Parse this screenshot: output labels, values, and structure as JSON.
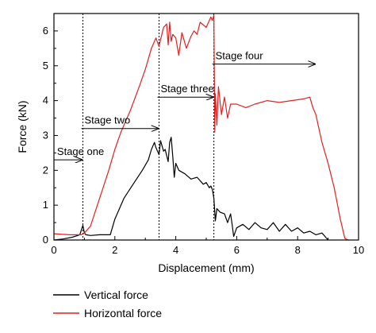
{
  "chart_data": {
    "type": "line",
    "xlabel": "Displacement (mm)",
    "ylabel": "Force (kN)",
    "xlim": [
      0,
      10
    ],
    "ylim": [
      0,
      6.5
    ],
    "xticks": [
      "0",
      "2",
      "4",
      "6",
      "8",
      "10"
    ],
    "yticks": [
      "0",
      "1",
      "2",
      "3",
      "4",
      "5",
      "6"
    ],
    "grid": false,
    "legend_position": "bottom-left",
    "stage_boundaries": [
      0.95,
      3.45,
      5.25
    ],
    "annotations": [
      {
        "text": "Stage one",
        "x": 0.05,
        "y": 2.3,
        "arrow_to": 0.95
      },
      {
        "text": "Stage two",
        "x": 0.95,
        "y": 3.2,
        "arrow_to": 3.45
      },
      {
        "text": "Stage three",
        "x": 3.45,
        "y": 4.1,
        "arrow_to": 5.25
      },
      {
        "text": "Stage four",
        "x": 5.25,
        "y": 5.05,
        "arrow_to": 8.6
      }
    ],
    "series": [
      {
        "name": "Vertical force",
        "color": "#000000",
        "x": [
          0,
          0.3,
          0.6,
          0.85,
          0.95,
          1.0,
          1.05,
          1.2,
          1.5,
          1.85,
          2.0,
          2.3,
          2.6,
          2.9,
          3.1,
          3.2,
          3.3,
          3.35,
          3.45,
          3.5,
          3.6,
          3.65,
          3.75,
          3.8,
          3.85,
          3.9,
          3.95,
          4.0,
          4.1,
          4.3,
          4.5,
          4.7,
          4.9,
          5.0,
          5.1,
          5.15,
          5.2,
          5.25,
          5.3,
          5.35,
          5.4,
          5.45,
          5.6,
          5.7,
          5.8,
          5.85,
          5.9,
          6.0,
          6.2,
          6.4,
          6.6,
          6.8,
          7.0,
          7.2,
          7.4,
          7.6,
          7.8,
          8.0,
          8.2,
          8.4,
          8.6,
          8.8,
          8.9,
          9.0
        ],
        "values": [
          0,
          0.03,
          0.08,
          0.15,
          0.42,
          0.2,
          0.15,
          0.13,
          0.15,
          0.15,
          0.6,
          1.2,
          1.6,
          2.0,
          2.3,
          2.6,
          2.8,
          2.65,
          2.45,
          2.85,
          2.55,
          2.6,
          2.25,
          2.8,
          2.95,
          2.4,
          1.8,
          2.2,
          2.0,
          1.9,
          1.75,
          1.8,
          1.6,
          1.65,
          1.5,
          1.55,
          1.45,
          1.2,
          0.55,
          0.9,
          0.85,
          0.8,
          0.75,
          0.5,
          0.75,
          0.45,
          0.1,
          0.35,
          0.45,
          0.3,
          0.5,
          0.35,
          0.3,
          0.5,
          0.25,
          0.45,
          0.25,
          0.35,
          0.2,
          0.25,
          0.15,
          0.2,
          0.1,
          0.0
        ]
      },
      {
        "name": "Horizontal force",
        "color": "#e02020",
        "x": [
          0,
          0.5,
          0.9,
          1.0,
          1.2,
          1.5,
          1.8,
          2.0,
          2.2,
          2.5,
          2.8,
          3.0,
          3.2,
          3.35,
          3.45,
          3.5,
          3.6,
          3.7,
          3.75,
          3.8,
          3.85,
          3.9,
          4.0,
          4.1,
          4.2,
          4.35,
          4.5,
          4.6,
          4.7,
          4.8,
          5.0,
          5.15,
          5.2,
          5.25,
          5.28,
          5.3,
          5.35,
          5.4,
          5.5,
          5.6,
          5.7,
          5.8,
          6.0,
          6.3,
          6.6,
          7.0,
          7.4,
          7.8,
          8.2,
          8.4,
          8.5,
          8.6,
          8.8,
          9.0,
          9.2,
          9.4,
          9.55,
          9.65,
          9.7
        ],
        "values": [
          0.18,
          0.15,
          0.15,
          0.2,
          0.4,
          1.2,
          2.0,
          2.6,
          3.1,
          3.7,
          4.4,
          4.9,
          5.5,
          5.8,
          5.55,
          5.75,
          6.1,
          6.2,
          5.6,
          6.25,
          5.7,
          5.9,
          5.8,
          5.3,
          5.95,
          5.5,
          5.85,
          6.0,
          5.9,
          6.25,
          6.1,
          6.4,
          6.3,
          6.45,
          3.1,
          4.2,
          3.3,
          4.4,
          3.6,
          4.1,
          3.5,
          3.9,
          3.9,
          3.8,
          3.9,
          4.0,
          3.95,
          4.0,
          4.05,
          4.1,
          3.8,
          3.6,
          2.8,
          2.2,
          1.5,
          0.6,
          0.05,
          0.0,
          0.0
        ]
      }
    ]
  }
}
